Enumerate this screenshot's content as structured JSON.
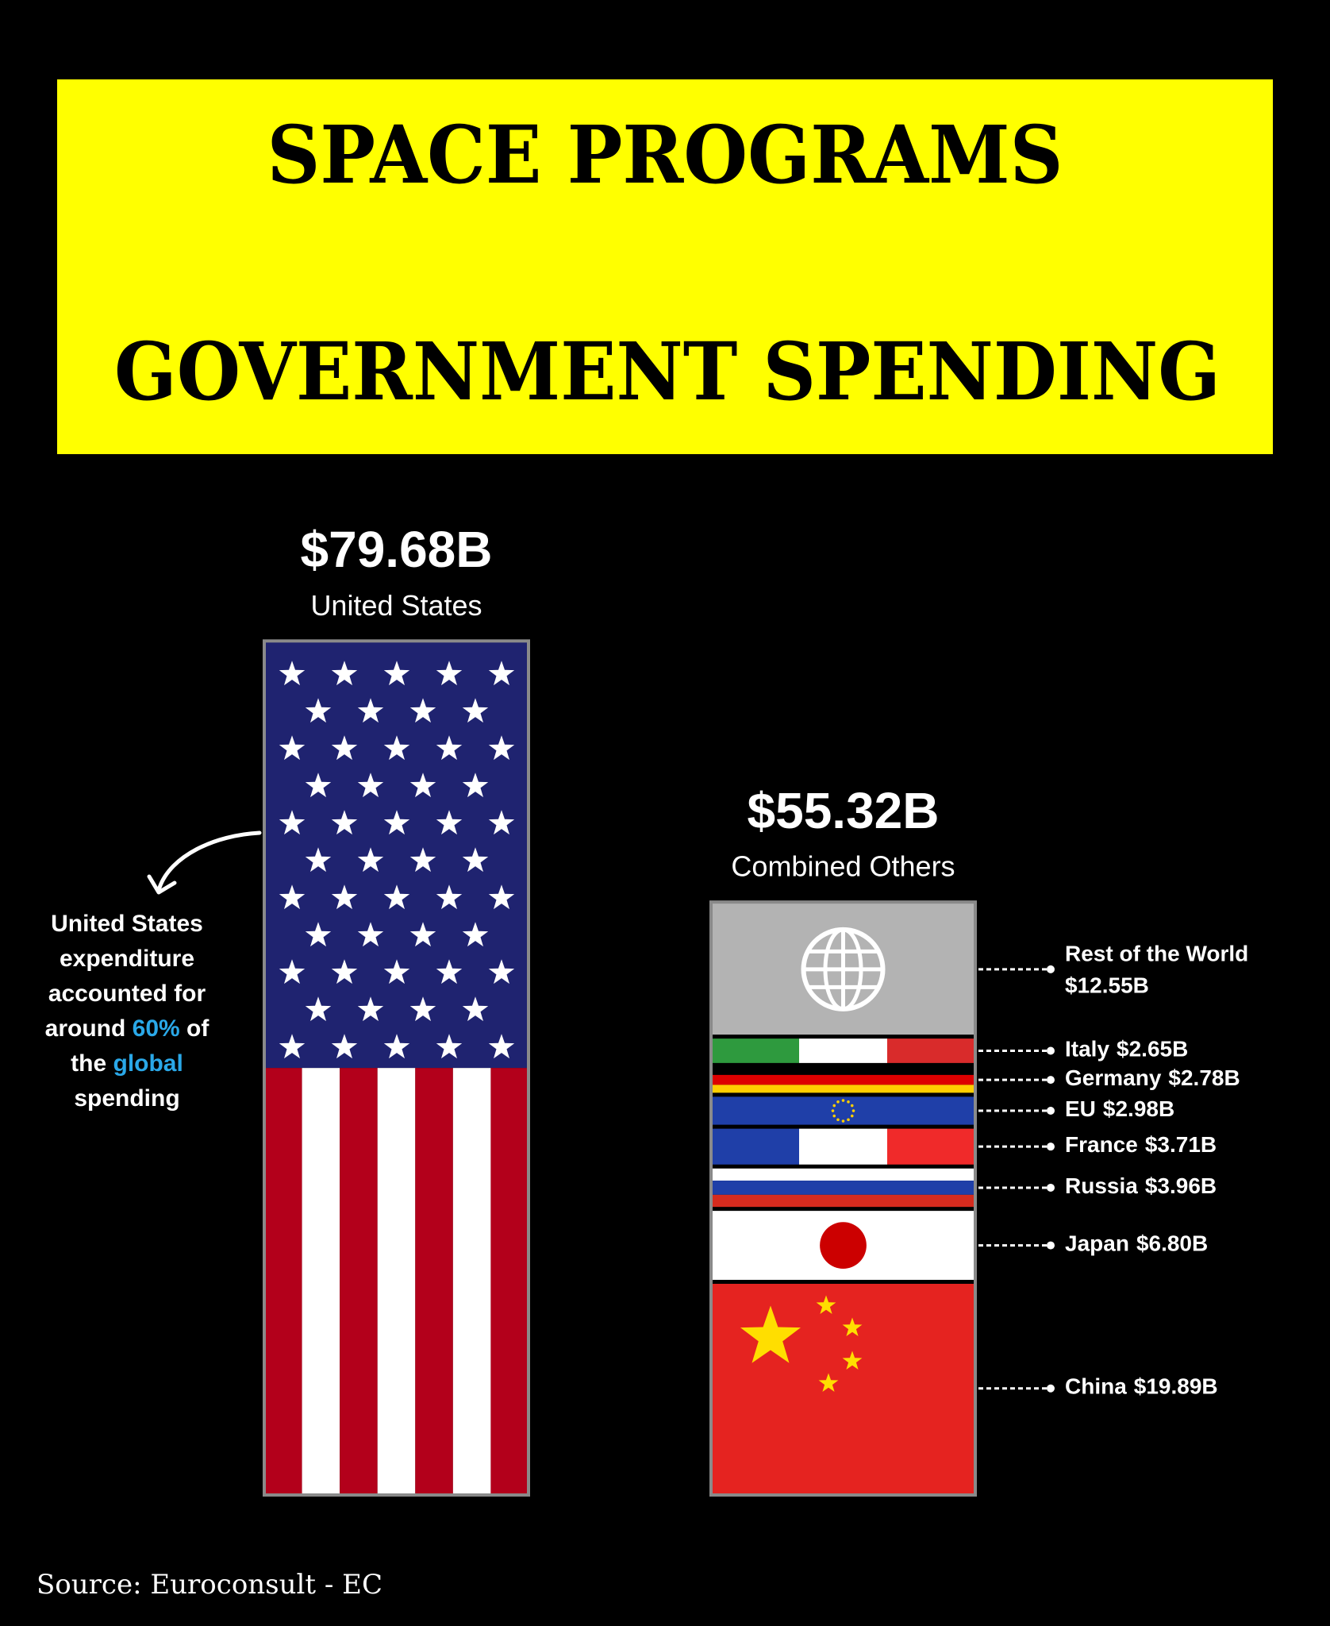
{
  "chart_data": {
    "type": "stacked-bar",
    "title": "SPACE PROGRAMS",
    "subtitle": "GOVERNMENT SPENDING",
    "categories": [
      "United States",
      "Combined Others"
    ],
    "values": [
      79.68,
      55.32
    ],
    "value_labels": [
      "$79.68B",
      "$55.32B"
    ],
    "segments": [
      {
        "name": "Rest of the World",
        "value": 12.55,
        "value_label": "$12.55B"
      },
      {
        "name": "Italy",
        "value": 2.65,
        "value_label": "$2.65B"
      },
      {
        "name": "Germany",
        "value": 2.78,
        "value_label": "$2.78B"
      },
      {
        "name": "EU",
        "value": 2.98,
        "value_label": "$2.98B"
      },
      {
        "name": "France",
        "value": 3.71,
        "value_label": "$3.71B"
      },
      {
        "name": "Russia",
        "value": 3.96,
        "value_label": "$3.96B"
      },
      {
        "name": "Japan",
        "value": 6.8,
        "value_label": "$6.80B"
      },
      {
        "name": "China",
        "value": 19.89,
        "value_label": "$19.89B"
      }
    ],
    "annotation": [
      {
        "text": "United States expenditure accounted for around ",
        "color": "#ffffff"
      },
      {
        "text": "60%",
        "color": "#2aa8e8"
      },
      {
        "text": " of the ",
        "color": "#ffffff"
      },
      {
        "text": "global",
        "color": "#2aa8e8"
      },
      {
        "text": " spending",
        "color": "#ffffff"
      }
    ],
    "source": "Source: Euroconsult - EC"
  }
}
